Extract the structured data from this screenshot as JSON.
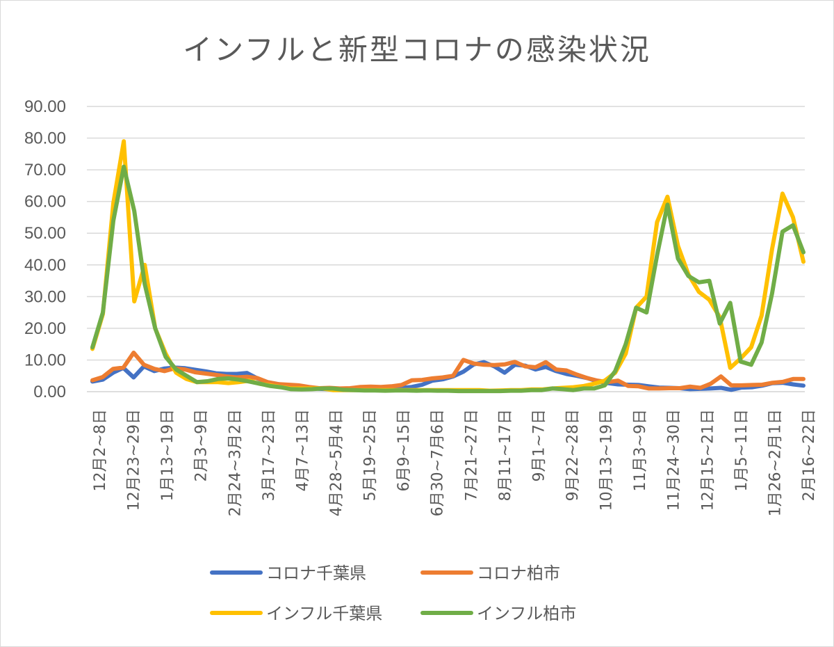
{
  "chart_data": {
    "type": "line",
    "title": "インフルと新型コロナの感染状況",
    "xlabel": "",
    "ylabel": "",
    "ylim": [
      0,
      90
    ],
    "yticks": [
      "0.00",
      "10.00",
      "20.00",
      "30.00",
      "40.00",
      "50.00",
      "60.00",
      "70.00",
      "80.00",
      "90.00"
    ],
    "grid": "horizontal",
    "legend": "bottom",
    "x_tick_labels": [
      "12月2~8日",
      "12月23~29日",
      "1月13~19日",
      "2月3~9日",
      "2月24~3月2日",
      "3月17~23日",
      "4月7~13日",
      "4月28~5月4日",
      "5月19~25日",
      "6月9~15日",
      "6月30~7月6日",
      "7月21~27日",
      "8月11~17日",
      "9月1~7日",
      "9月22~28日",
      "10月13~19日",
      "11月3~9日",
      "11月24~30日",
      "12月15~21日",
      "1月5~11日",
      "1月26~2月1日",
      "2月16~22日"
    ],
    "series": [
      {
        "name": "コロナ千葉県",
        "color": "#4472C4",
        "values": [
          3.2,
          3.8,
          6.0,
          7.5,
          4.5,
          8.0,
          6.5,
          7.3,
          7.6,
          7.4,
          6.9,
          6.4,
          5.8,
          5.6,
          5.6,
          5.9,
          4.2,
          3.0,
          2.4,
          1.7,
          1.5,
          1.2,
          0.9,
          0.8,
          0.7,
          0.7,
          0.7,
          0.7,
          0.8,
          0.9,
          1.2,
          1.5,
          2.2,
          3.5,
          3.9,
          4.8,
          6.3,
          8.6,
          9.3,
          8.0,
          6.0,
          8.5,
          8.2,
          7.0,
          7.8,
          6.5,
          5.6,
          5.0,
          4.3,
          3.3,
          2.7,
          2.3,
          2.2,
          2.1,
          1.7,
          1.3,
          1.2,
          1.1,
          0.8,
          0.9,
          1.0,
          1.2,
          0.6,
          1.3,
          1.4,
          1.9,
          2.7,
          2.8,
          2.3,
          1.9
        ]
      },
      {
        "name": "コロナ柏市",
        "color": "#ED7D31",
        "values": [
          3.6,
          4.6,
          7.2,
          7.6,
          12.3,
          8.5,
          7.2,
          6.5,
          7.4,
          7.0,
          6.1,
          5.7,
          5.3,
          4.8,
          4.5,
          4.7,
          4.3,
          3.0,
          2.4,
          2.2,
          2.0,
          1.5,
          1.1,
          1.2,
          1.0,
          1.1,
          1.5,
          1.6,
          1.5,
          1.7,
          2.1,
          3.6,
          3.7,
          4.2,
          4.5,
          5.0,
          10.0,
          8.9,
          8.5,
          8.4,
          8.6,
          9.4,
          8.0,
          7.7,
          9.3,
          7.0,
          6.7,
          5.4,
          4.3,
          3.5,
          3.0,
          3.5,
          1.8,
          1.7,
          1.0,
          1.0,
          1.1,
          1.1,
          1.6,
          1.2,
          2.5,
          4.8,
          2.0,
          2.0,
          2.1,
          2.2,
          2.8,
          3.1,
          4.0,
          4.0
        ]
      },
      {
        "name": "インフル千葉県",
        "color": "#FFC000",
        "values": [
          13.5,
          24.5,
          59.5,
          79.0,
          28.5,
          40.0,
          20.0,
          12.0,
          6.0,
          4.0,
          3.0,
          3.0,
          3.0,
          2.7,
          3.0,
          3.5,
          2.5,
          2.0,
          1.5,
          1.0,
          1.0,
          1.0,
          1.0,
          0.5,
          0.5,
          0.5,
          0.5,
          0.5,
          0.5,
          0.5,
          0.5,
          0.5,
          0.5,
          0.5,
          0.5,
          0.5,
          0.5,
          0.5,
          0.3,
          0.4,
          0.5,
          0.5,
          0.7,
          0.7,
          1.0,
          1.2,
          1.4,
          1.8,
          2.5,
          3.5,
          6.0,
          12.0,
          26.5,
          30.0,
          53.5,
          61.5,
          46.0,
          37.0,
          31.5,
          29.0,
          23.5,
          7.5,
          10.5,
          14.0,
          24.0,
          45.0,
          62.5,
          55.0,
          41.0
        ]
      },
      {
        "name": "インフル柏市",
        "color": "#70AD47",
        "values": [
          14.0,
          25.0,
          54.0,
          71.0,
          57.0,
          34.0,
          20.0,
          11.0,
          7.0,
          5.0,
          3.0,
          3.3,
          4.0,
          4.2,
          3.8,
          3.2,
          2.5,
          1.8,
          1.4,
          0.8,
          0.7,
          0.8,
          1.0,
          1.0,
          0.6,
          0.5,
          0.4,
          0.4,
          0.3,
          0.4,
          0.4,
          0.3,
          0.4,
          0.3,
          0.3,
          0.2,
          0.2,
          0.2,
          0.2,
          0.2,
          0.3,
          0.3,
          0.5,
          0.5,
          1.0,
          0.8,
          0.5,
          1.0,
          1.0,
          2.0,
          6.5,
          15.0,
          26.5,
          25.0,
          43.0,
          59.0,
          42.0,
          36.5,
          34.5,
          35.0,
          21.5,
          28.0,
          9.5,
          8.5,
          15.5,
          31.0,
          50.5,
          52.5,
          44.0
        ]
      }
    ]
  }
}
